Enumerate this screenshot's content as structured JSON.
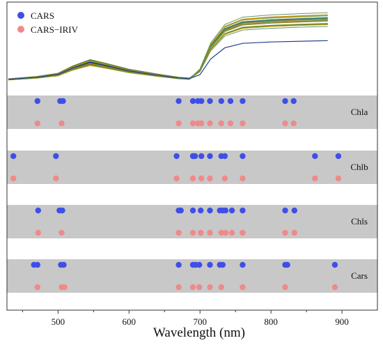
{
  "chart_data": {
    "type": "scatter",
    "xlabel": "Wavelength (nm)",
    "xlim": [
      428,
      950
    ],
    "x_ticks": [
      500,
      600,
      700,
      800,
      900
    ],
    "colors": {
      "CARS": "#3f4fe6",
      "CARS-IRIV": "#ef8a8a",
      "band": "#c8c8c8",
      "spectra": [
        "#d4ac0d",
        "#c9a227",
        "#2e8b57",
        "#5b8c5a",
        "#6b8e23",
        "#3c6e71",
        "#8b6914",
        "#556b2f",
        "#2f4f4f",
        "#b8860b"
      ],
      "spectrum_lowest": "#1f3f8f"
    },
    "legend": {
      "placement": "top-left",
      "entries": [
        "CARS",
        "CARS−IRIV"
      ]
    },
    "spectra_panel": {
      "description_values": [
        [
          430,
          0.06
        ],
        [
          470,
          0.09
        ],
        [
          500,
          0.13
        ],
        [
          520,
          0.22
        ],
        [
          545,
          0.3
        ],
        [
          565,
          0.26
        ],
        [
          600,
          0.18
        ],
        [
          640,
          0.12
        ],
        [
          670,
          0.08
        ],
        [
          685,
          0.07
        ],
        [
          700,
          0.2
        ],
        [
          715,
          0.55
        ],
        [
          735,
          0.8
        ],
        [
          760,
          0.9
        ],
        [
          800,
          0.93
        ],
        [
          850,
          0.95
        ],
        [
          880,
          0.96
        ]
      ]
    },
    "rows": [
      {
        "label": "Chla",
        "CARS": [
          471,
          503,
          507,
          670,
          690,
          697,
          702,
          714,
          730,
          743,
          760,
          820,
          832
        ],
        "CARS-IRIV": [
          471,
          505,
          670,
          690,
          697,
          702,
          714,
          730,
          743,
          760,
          820,
          832
        ]
      },
      {
        "label": "Chlb",
        "CARS": [
          437,
          497,
          667,
          690,
          693,
          702,
          714,
          730,
          735,
          760,
          862,
          895
        ],
        "CARS-IRIV": [
          437,
          497,
          667,
          690,
          702,
          714,
          735,
          760,
          862,
          895
        ]
      },
      {
        "label": "Chls",
        "CARS": [
          472,
          502,
          506,
          670,
          673,
          690,
          701,
          714,
          728,
          732,
          736,
          745,
          760,
          820,
          833
        ],
        "CARS-IRIV": [
          472,
          505,
          670,
          690,
          701,
          714,
          730,
          736,
          745,
          760,
          820,
          833
        ]
      },
      {
        "label": "Cars",
        "CARS": [
          466,
          471,
          504,
          508,
          670,
          690,
          694,
          699,
          714,
          728,
          732,
          760,
          820,
          823,
          890
        ],
        "CARS-IRIV": [
          471,
          505,
          509,
          670,
          690,
          699,
          714,
          730,
          760,
          820,
          890
        ]
      }
    ]
  }
}
